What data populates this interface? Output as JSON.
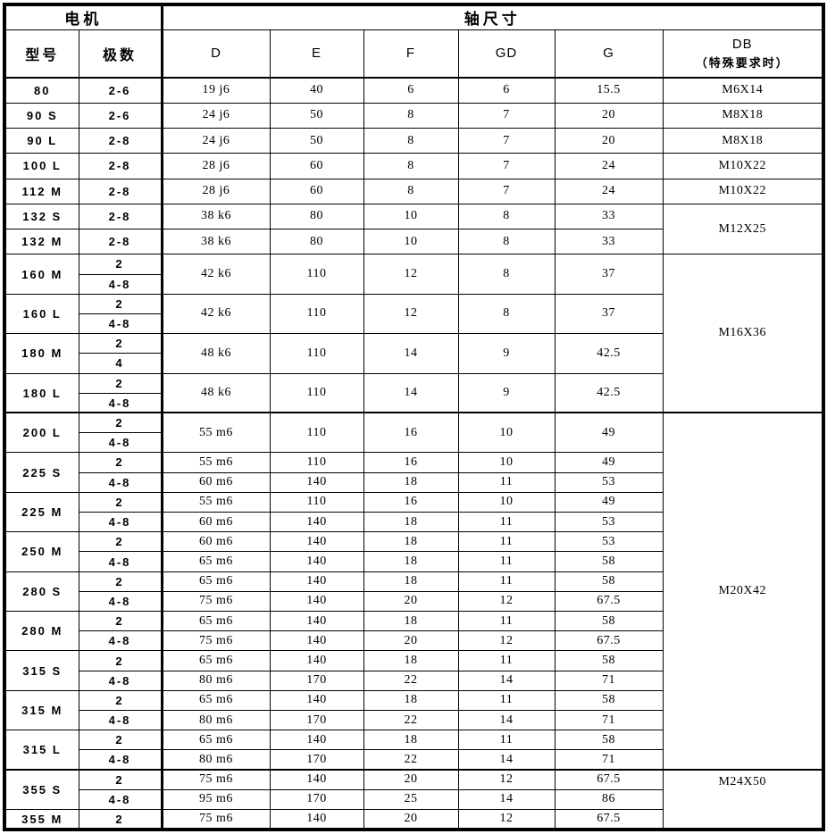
{
  "colors": {
    "border": "#000000",
    "text": "#000000",
    "background": "#ffffff"
  },
  "table": {
    "header": {
      "motor_group": "电机",
      "shaft_group": "轴尺寸",
      "model_label": "型号",
      "poles_label": "极数",
      "dim_labels": [
        "D",
        "E",
        "F",
        "GD",
        "G"
      ],
      "db_label_line1": "DB",
      "db_label_line2": "（特殊要求时）"
    },
    "rows": [
      {
        "model": "80",
        "subs": [
          {
            "poles": "2-6",
            "d": "19 j6",
            "e": "40",
            "f": "6",
            "gd": "6",
            "g": "15.5"
          }
        ],
        "db": "M6X14",
        "db_tr_span": 1
      },
      {
        "model": "90 S",
        "subs": [
          {
            "poles": "2-6",
            "d": "24 j6",
            "e": "50",
            "f": "8",
            "gd": "7",
            "g": "20"
          }
        ],
        "db": "M8X18",
        "db_tr_span": 1
      },
      {
        "model": "90 L",
        "subs": [
          {
            "poles": "2-8",
            "d": "24 j6",
            "e": "50",
            "f": "8",
            "gd": "7",
            "g": "20"
          }
        ],
        "db": "M8X18",
        "db_tr_span": 1
      },
      {
        "model": "100 L",
        "subs": [
          {
            "poles": "2-8",
            "d": "28 j6",
            "e": "60",
            "f": "8",
            "gd": "7",
            "g": "24"
          }
        ],
        "db": "M10X22",
        "db_tr_span": 1
      },
      {
        "model": "112 M",
        "subs": [
          {
            "poles": "2-8",
            "d": "28 j6",
            "e": "60",
            "f": "8",
            "gd": "7",
            "g": "24"
          }
        ],
        "db": "M10X22",
        "db_tr_span": 1
      },
      {
        "model": "132 S",
        "subs": [
          {
            "poles": "2-8",
            "d": "38 k6",
            "e": "80",
            "f": "10",
            "gd": "8",
            "g": "33"
          }
        ],
        "db": "M12X25",
        "db_tr_span": 2
      },
      {
        "model": "132 M",
        "subs": [
          {
            "poles": "2-8",
            "d": "38 k6",
            "e": "80",
            "f": "10",
            "gd": "8",
            "g": "33"
          }
        ]
      },
      {
        "model": "160 M",
        "merged": true,
        "dims": {
          "d": "42 k6",
          "e": "110",
          "f": "12",
          "gd": "8",
          "g": "37"
        },
        "subs": [
          {
            "poles": "2"
          },
          {
            "poles": "4-8"
          }
        ],
        "db": "M16X36",
        "db_tr_span": 8
      },
      {
        "model": "160 L",
        "merged": true,
        "dims": {
          "d": "42 k6",
          "e": "110",
          "f": "12",
          "gd": "8",
          "g": "37"
        },
        "subs": [
          {
            "poles": "2"
          },
          {
            "poles": "4-8"
          }
        ]
      },
      {
        "model": "180 M",
        "merged": true,
        "dims": {
          "d": "48 k6",
          "e": "110",
          "f": "14",
          "gd": "9",
          "g": "42.5"
        },
        "subs": [
          {
            "poles": "2"
          },
          {
            "poles": "4"
          }
        ]
      },
      {
        "model": "180 L",
        "merged": true,
        "dims": {
          "d": "48 k6",
          "e": "110",
          "f": "14",
          "gd": "9",
          "g": "42.5"
        },
        "subs": [
          {
            "poles": "2"
          },
          {
            "poles": "4-8"
          }
        ]
      },
      {
        "model": "200 L",
        "section_start": true,
        "merged": true,
        "dims": {
          "d": "55 m6",
          "e": "110",
          "f": "16",
          "gd": "10",
          "g": "49"
        },
        "subs": [
          {
            "poles": "2"
          },
          {
            "poles": "4-8"
          }
        ],
        "db": "M20X42",
        "db_tr_span": 18
      },
      {
        "model": "225 S",
        "subs": [
          {
            "poles": "2",
            "d": "55 m6",
            "e": "110",
            "f": "16",
            "gd": "10",
            "g": "49"
          },
          {
            "poles": "4-8",
            "d": "60 m6",
            "e": "140",
            "f": "18",
            "gd": "11",
            "g": "53"
          }
        ]
      },
      {
        "model": "225 M",
        "subs": [
          {
            "poles": "2",
            "d": "55 m6",
            "e": "110",
            "f": "16",
            "gd": "10",
            "g": "49"
          },
          {
            "poles": "4-8",
            "d": "60 m6",
            "e": "140",
            "f": "18",
            "gd": "11",
            "g": "53"
          }
        ]
      },
      {
        "model": "250 M",
        "subs": [
          {
            "poles": "2",
            "d": "60 m6",
            "e": "140",
            "f": "18",
            "gd": "11",
            "g": "53"
          },
          {
            "poles": "4-8",
            "d": "65 m6",
            "e": "140",
            "f": "18",
            "gd": "11",
            "g": "58"
          }
        ]
      },
      {
        "model": "280 S",
        "subs": [
          {
            "poles": "2",
            "d": "65 m6",
            "e": "140",
            "f": "18",
            "gd": "11",
            "g": "58"
          },
          {
            "poles": "4-8",
            "d": "75 m6",
            "e": "140",
            "f": "20",
            "gd": "12",
            "g": "67.5"
          }
        ]
      },
      {
        "model": "280 M",
        "subs": [
          {
            "poles": "2",
            "d": "65 m6",
            "e": "140",
            "f": "18",
            "gd": "11",
            "g": "58"
          },
          {
            "poles": "4-8",
            "d": "75 m6",
            "e": "140",
            "f": "20",
            "gd": "12",
            "g": "67.5"
          }
        ]
      },
      {
        "model": "315 S",
        "subs": [
          {
            "poles": "2",
            "d": "65 m6",
            "e": "140",
            "f": "18",
            "gd": "11",
            "g": "58"
          },
          {
            "poles": "4-8",
            "d": "80 m6",
            "e": "170",
            "f": "22",
            "gd": "14",
            "g": "71"
          }
        ]
      },
      {
        "model": "315 M",
        "subs": [
          {
            "poles": "2",
            "d": "65 m6",
            "e": "140",
            "f": "18",
            "gd": "11",
            "g": "58"
          },
          {
            "poles": "4-8",
            "d": "80 m6",
            "e": "170",
            "f": "22",
            "gd": "14",
            "g": "71"
          }
        ]
      },
      {
        "model": "315 L",
        "subs": [
          {
            "poles": "2",
            "d": "65 m6",
            "e": "140",
            "f": "18",
            "gd": "11",
            "g": "58"
          },
          {
            "poles": "4-8",
            "d": "80 m6",
            "e": "170",
            "f": "22",
            "gd": "14",
            "g": "71"
          }
        ]
      },
      {
        "model": "355 S",
        "section_start": true,
        "subs": [
          {
            "poles": "2",
            "d": "75 m6",
            "e": "140",
            "f": "20",
            "gd": "12",
            "g": "67.5"
          },
          {
            "poles": "4-8",
            "d": "95 m6",
            "e": "170",
            "f": "25",
            "gd": "14",
            "g": "86"
          }
        ],
        "db": "M24X50",
        "db_tr_span": 3,
        "db_align_top": true
      },
      {
        "model": "355 M",
        "subs": [
          {
            "poles": "2",
            "d": "75 m6",
            "e": "140",
            "f": "20",
            "gd": "12",
            "g": "67.5"
          }
        ]
      }
    ]
  }
}
